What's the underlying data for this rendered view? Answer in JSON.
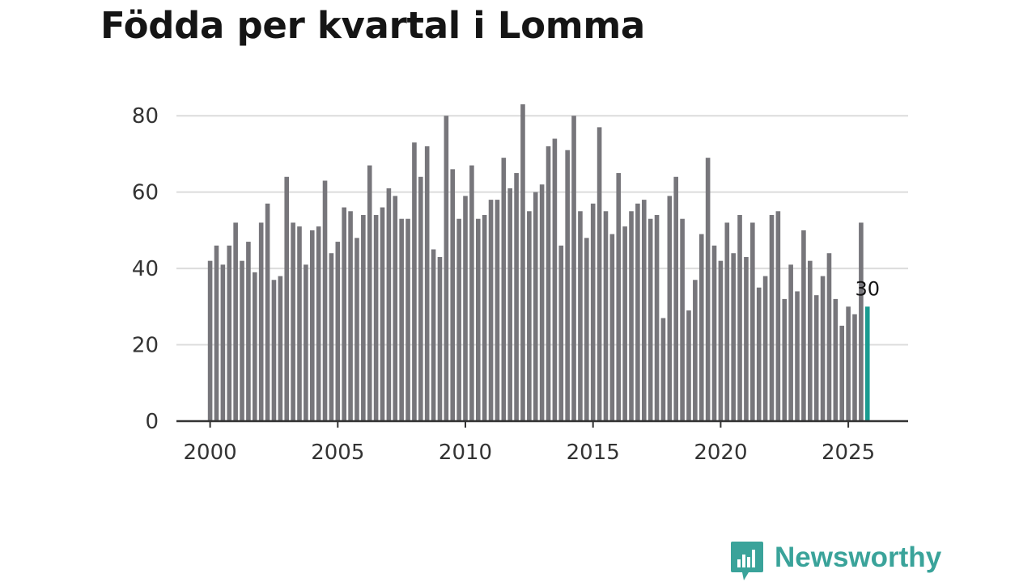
{
  "title": "Födda per kvartal i Lomma",
  "brand": {
    "name": "Newsworthy",
    "color": "#3aa39a"
  },
  "chart_data": {
    "type": "bar",
    "title": "Födda per kvartal i Lomma",
    "xlabel": "",
    "ylabel": "",
    "ylim": [
      0,
      90
    ],
    "grid": true,
    "bar_color": "#77767b",
    "highlight_color": "#1a9b90",
    "grid_color": "#dcdcdc",
    "axis_color": "#333333",
    "x_start": 2000,
    "periods_per_year": 4,
    "x_ticks": [
      2000,
      2005,
      2010,
      2015,
      2020,
      2025
    ],
    "y_ticks": [
      0,
      20,
      40,
      60,
      80
    ],
    "values": [
      42,
      46,
      41,
      46,
      52,
      42,
      47,
      39,
      52,
      57,
      37,
      38,
      64,
      52,
      51,
      41,
      50,
      51,
      63,
      44,
      47,
      56,
      55,
      48,
      54,
      67,
      54,
      56,
      61,
      59,
      53,
      53,
      73,
      64,
      72,
      45,
      43,
      80,
      66,
      53,
      59,
      67,
      53,
      54,
      58,
      58,
      69,
      61,
      65,
      83,
      55,
      60,
      62,
      72,
      74,
      46,
      71,
      80,
      55,
      48,
      57,
      77,
      55,
      49,
      65,
      51,
      55,
      57,
      58,
      53,
      54,
      27,
      59,
      64,
      53,
      29,
      37,
      49,
      69,
      46,
      42,
      52,
      44,
      54,
      43,
      52,
      35,
      38,
      54,
      55,
      32,
      41,
      34,
      50,
      42,
      33,
      38,
      44,
      32,
      25,
      30,
      28,
      52,
      30
    ],
    "highlight_index": 103,
    "highlight_label": "30"
  }
}
